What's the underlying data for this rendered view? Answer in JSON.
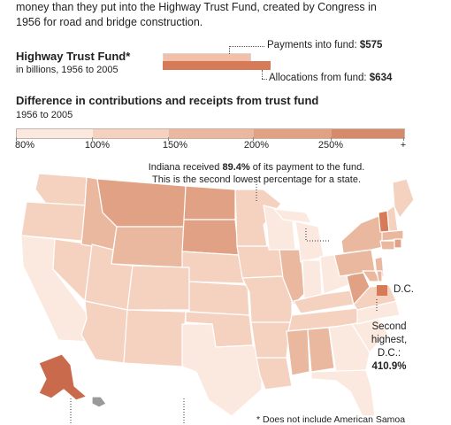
{
  "intro": {
    "line1": "money than they put into the Highway Trust Fund, created by Congress in",
    "line2": "1956 for road and bridge construction."
  },
  "fund": {
    "title": "Highway Trust Fund*",
    "subtitle": "in billions, 1956 to 2005",
    "payments_label": "Payments into fund: ",
    "payments_value": "$575",
    "allocations_label": "Allocations from fund: ",
    "allocations_value": "$634",
    "payments": 575,
    "allocations": 634
  },
  "difference": {
    "title": "Difference in contributions and receipts from trust fund",
    "subtitle": "1956 to 2005",
    "scale_labels": [
      "80%",
      "100%",
      "150%",
      "200%",
      "250%",
      "+"
    ],
    "scale_colors": [
      "#fbe9df",
      "#f5d2bf",
      "#eab89f",
      "#e0a184",
      "#d68a6c"
    ]
  },
  "annotations": {
    "indiana_line1_pre": "Indiana received ",
    "indiana_value": "89.4%",
    "indiana_line1_post": " of its payment to the fund.",
    "indiana_line2": "This is the second lowest percentage for a state.",
    "dc_label": "D.C.",
    "second_line1": "Second",
    "second_line2": "highest,",
    "second_line3": "D.C.:",
    "second_value": "410.9%"
  },
  "footnote": "* Does not include American Samoa",
  "colors": {
    "c1": "#fbe9df",
    "c2": "#f5d2bf",
    "c3": "#eab89f",
    "c4": "#e0a184",
    "c5": "#d67a58",
    "alaska": "#c96a4c"
  }
}
